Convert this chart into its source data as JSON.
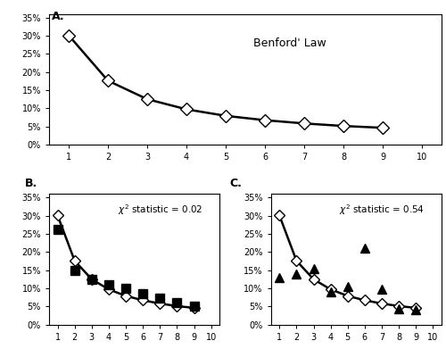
{
  "digits": [
    1,
    2,
    3,
    4,
    5,
    6,
    7,
    8,
    9
  ],
  "benford": [
    0.301,
    0.176,
    0.125,
    0.097,
    0.079,
    0.067,
    0.058,
    0.051,
    0.046
  ],
  "sample_B": [
    0.262,
    0.15,
    0.125,
    0.11,
    0.1,
    0.085,
    0.073,
    0.06,
    0.05
  ],
  "sample_C": [
    0.13,
    0.14,
    0.155,
    0.09,
    0.105,
    0.21,
    0.098,
    0.043,
    0.04
  ],
  "label_A": "Benford' Law",
  "label_B": "$\\chi^2$ statistic = 0.02",
  "label_C": "$\\chi^2$ statistic = 0.54",
  "ylim": [
    0,
    0.36
  ],
  "xlim": [
    0.5,
    10.5
  ],
  "yticks": [
    0,
    0.05,
    0.1,
    0.15,
    0.2,
    0.25,
    0.3,
    0.35
  ],
  "ytick_labels": [
    "0%",
    "5%",
    "10%",
    "15%",
    "20%",
    "25%",
    "30%",
    "35%"
  ],
  "xticks": [
    1,
    2,
    3,
    4,
    5,
    6,
    7,
    8,
    9,
    10
  ],
  "background_color": "#ffffff",
  "line_color": "#000000",
  "diamond_facecolor": "#ffffff",
  "diamond_edgecolor": "#000000",
  "square_color": "#000000",
  "triangle_color": "#000000"
}
